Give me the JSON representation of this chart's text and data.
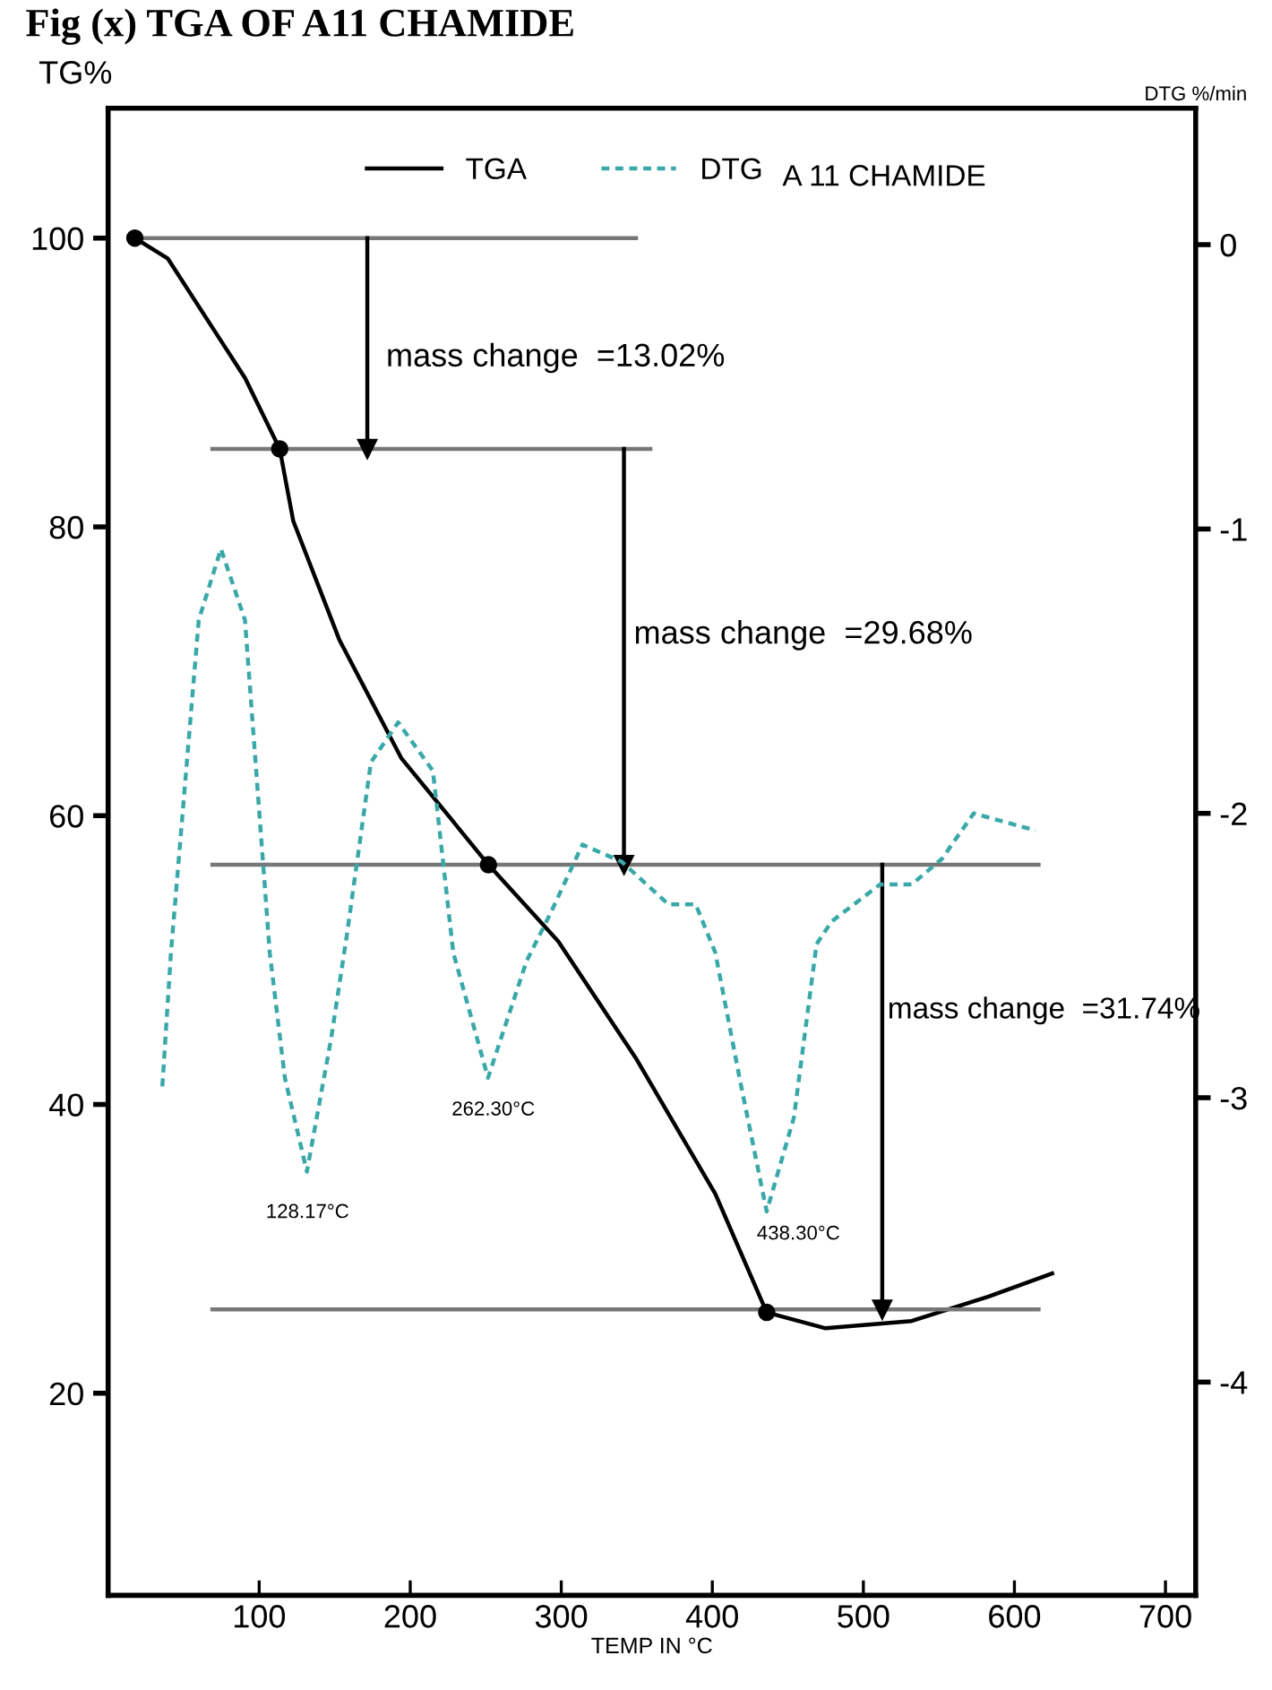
{
  "chart_data": {
    "type": "line",
    "title": "Fig (x) TGA OF A11 CHAMIDE",
    "xlabel": "TEMP IN °C",
    "ylabel": "TG%",
    "y2label": "DTG %/min",
    "xlim": [
      0,
      720
    ],
    "xticks": [
      100,
      200,
      300,
      400,
      500,
      600,
      700
    ],
    "ylim": [
      6,
      109
    ],
    "yticks": [
      20,
      40,
      60,
      80,
      100
    ],
    "y2lim": [
      -4.75,
      0.48
    ],
    "y2ticks": [
      {
        "value": 0,
        "label": "0"
      },
      {
        "value": -1,
        "label": "-1"
      },
      {
        "value": -2,
        "label": "-2"
      },
      {
        "value": -3,
        "label": "-3"
      },
      {
        "value": -4,
        "label": "-4"
      }
    ],
    "grid": false,
    "legend": "top",
    "series": [
      {
        "name": "TGA",
        "color": "#000000",
        "line_style": "solid",
        "x": [
          17.7,
          39.4,
          90.7,
          113.6,
          122.6,
          153,
          194,
          251.8,
          298,
          350,
          402,
          436,
          475,
          532,
          583,
          625
        ],
        "values": [
          100,
          98.6,
          90.3,
          85.4,
          80.4,
          72.2,
          64,
          56.6,
          51.3,
          43.1,
          33.8,
          25.6,
          24.5,
          25,
          26.7,
          28.3
        ]
      },
      {
        "name": "DTG",
        "color": "#3aa8a8",
        "line_style": "dotted",
        "axis": "y2",
        "x": [
          35.9,
          41.6,
          60,
          74.7,
          90.6,
          107,
          117,
          131.6,
          147.7,
          158,
          174,
          192,
          215,
          228.5,
          251.5,
          277,
          293,
          314,
          340,
          371,
          389,
          402,
          418,
          436,
          454,
          469,
          479,
          511,
          532,
          552,
          573,
          614
        ],
        "values": [
          -2.96,
          -2.49,
          -1.32,
          -1.07,
          -1.32,
          -2.49,
          -2.93,
          -3.26,
          -2.79,
          -2.43,
          -1.82,
          -1.68,
          -1.85,
          -2.49,
          -2.93,
          -2.52,
          -2.35,
          -2.11,
          -2.17,
          -2.32,
          -2.32,
          -2.49,
          -2.93,
          -3.4,
          -3.07,
          -2.46,
          -2.38,
          -2.25,
          -2.25,
          -2.16,
          -2.0,
          -2.06
        ]
      },
      {
        "type": "scatter",
        "color": "#000000",
        "marker": "circle",
        "x": [
          17.7,
          113.6,
          251.8,
          436
        ],
        "values": [
          100,
          85.4,
          56.6,
          25.6
        ]
      },
      {
        "color": "#777777",
        "line_style": "solid",
        "x": [
          24.5,
          349.5
        ],
        "values": [
          100,
          100
        ]
      },
      {
        "color": "#777777",
        "line_style": "solid",
        "x": [
          69,
          359
        ],
        "values": [
          85.4,
          85.4
        ]
      },
      {
        "color": "#777777",
        "line_style": "solid",
        "x": [
          69,
          616
        ],
        "values": [
          56.6,
          56.6
        ]
      },
      {
        "color": "#777777",
        "line_style": "solid",
        "x": [
          69,
          616
        ],
        "values": [
          25.8,
          25.8
        ]
      },
      {
        "color": "#000000",
        "line_style": "solid",
        "marker": "triangle",
        "x": [
          171.6,
          171.6
        ],
        "values": [
          100,
          85.4
        ]
      },
      {
        "color": "#000000",
        "line_style": "solid",
        "marker": "triangle",
        "x": [
          341.5,
          341.5
        ],
        "values": [
          85.4,
          56.6
        ]
      },
      {
        "color": "#000000",
        "line_style": "solid",
        "marker": "triangle",
        "x": [
          512.5,
          512.5
        ],
        "values": [
          56.6,
          25.8
        ]
      }
    ],
    "annotations": [
      "A 11 CHAMIDE",
      "mass change  =13.02%",
      "mass change  =29.68%",
      "mass change  =31.74%",
      "128.17°C",
      "262.30°C",
      "438.30°C"
    ]
  }
}
